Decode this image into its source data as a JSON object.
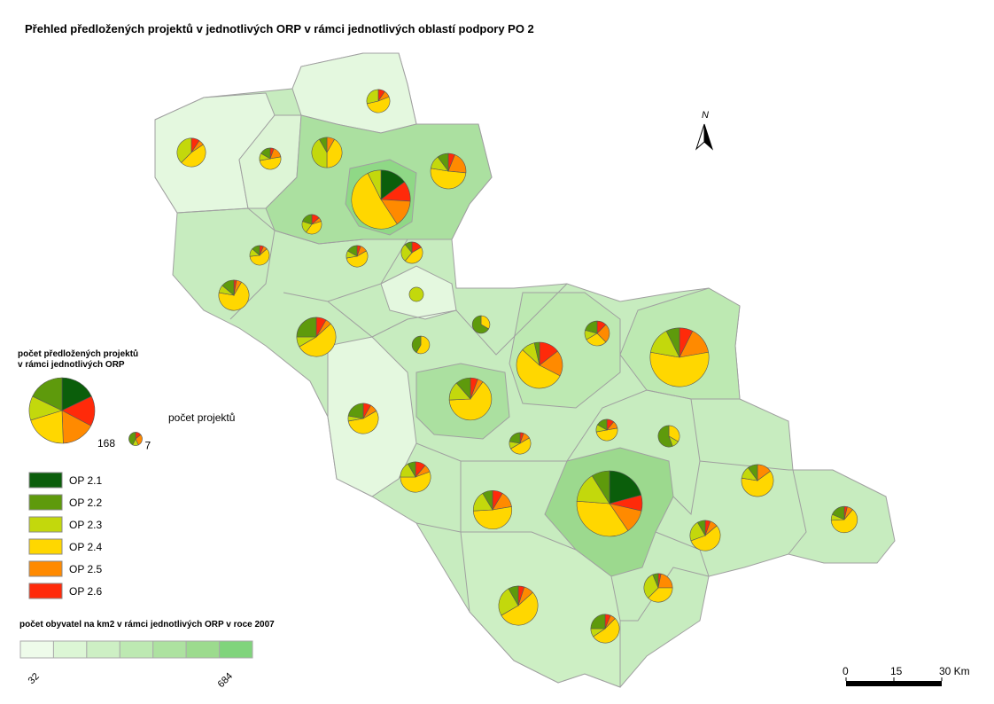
{
  "title": "Přehled předložených projektů v jednotlivých ORP v rámci jednotlivých oblastí podpory PO 2",
  "pie_legend": {
    "title_lines": [
      "počet předložených projektů",
      "v rámci jednotlivých ORP"
    ],
    "count_label": "počet projektů",
    "sizes": [
      {
        "value": 168,
        "slices": [
          30,
          30,
          20,
          35,
          28,
          25
        ]
      },
      {
        "value": 7,
        "slices": [
          0,
          3,
          1,
          0,
          2,
          1
        ]
      }
    ]
  },
  "categories": {
    "names": [
      "OP 2.1",
      "OP 2.2",
      "OP 2.3",
      "OP 2.4",
      "OP 2.5",
      "OP 2.6"
    ],
    "colors": [
      "#0b5e0b",
      "#5e9a0c",
      "#c3d80c",
      "#ffd700",
      "#ff8a00",
      "#ff2a0a"
    ]
  },
  "orp_pies": [
    [
      20,
      0,
      10,
      70,
      20,
      15
    ],
    [
      35,
      15,
      25,
      60,
      20,
      13
    ],
    [
      0,
      10,
      20,
      75,
      20,
      10
    ],
    [
      0,
      3,
      8,
      45,
      15,
      12
    ],
    [
      0,
      8,
      10,
      45,
      3,
      4
    ],
    [
      0,
      15,
      5,
      32,
      3,
      5
    ],
    [
      0,
      5,
      6,
      25,
      10,
      3
    ],
    [
      0,
      5,
      15,
      32,
      5,
      3
    ],
    [
      0,
      5,
      10,
      30,
      8,
      5
    ],
    [
      0,
      0,
      12,
      15,
      2,
      3
    ],
    [
      0,
      3,
      15,
      15,
      3,
      0
    ],
    [
      0,
      5,
      3,
      25,
      2,
      1
    ],
    [
      0,
      8,
      2,
      20,
      3,
      3
    ],
    [
      0,
      3,
      6,
      20,
      3,
      4
    ],
    [
      0,
      4,
      5,
      25,
      6,
      0
    ],
    [
      0,
      3,
      8,
      20,
      3,
      2
    ],
    [
      0,
      2,
      10,
      12,
      7,
      1
    ],
    [
      0,
      8,
      3,
      17,
      2,
      2
    ],
    [
      0,
      5,
      2,
      17,
      2,
      1
    ],
    [
      0,
      0,
      6,
      11,
      2,
      2
    ],
    [
      0,
      3,
      2,
      9,
      3,
      1
    ],
    [
      0,
      3,
      3,
      6,
      1,
      2
    ],
    [
      0,
      3,
      2,
      10,
      2,
      1
    ],
    [
      0,
      2,
      5,
      8,
      0,
      3
    ],
    [
      0,
      2,
      2,
      9,
      1,
      1
    ],
    [
      0,
      0,
      8,
      0,
      0,
      0
    ],
    [
      0,
      8,
      0,
      4,
      0,
      0
    ],
    [
      0,
      5,
      0,
      7,
      0,
      0
    ],
    [
      0,
      5,
      3,
      7,
      6,
      3
    ],
    [
      0,
      3,
      2,
      9,
      2,
      2
    ],
    [
      0,
      4,
      2,
      9,
      2,
      1
    ],
    [
      0,
      10,
      2,
      6,
      0,
      0
    ]
  ],
  "density_legend": {
    "title": "počet obyvatel na km2 v rámci jednotlivých ORP v roce 2007",
    "colors": [
      "#eefbea",
      "#dcf6d5",
      "#cdefc4",
      "#bde9b2",
      "#ade2a0",
      "#9cdb8e",
      "#80d47c"
    ],
    "min": 32,
    "max": 684
  },
  "north": "N",
  "scale": {
    "ticks": [
      0,
      15,
      {
        "value": 30,
        "label": "30 Km"
      }
    ]
  }
}
